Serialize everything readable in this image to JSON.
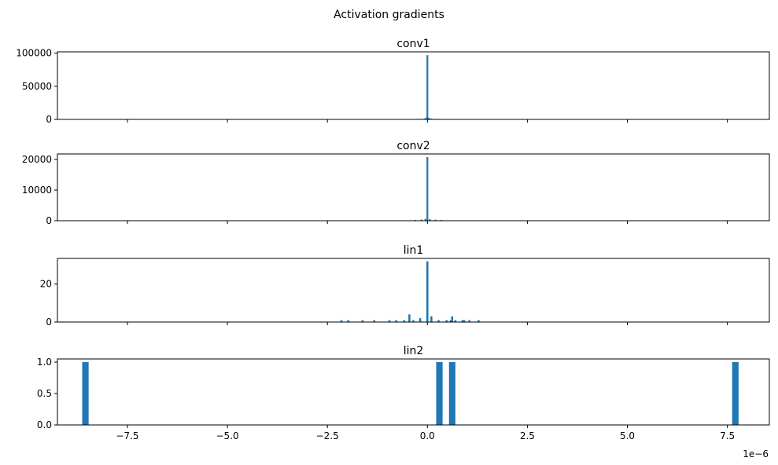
{
  "figure": {
    "suptitle": "Activation gradients",
    "x_offset_label": "1e−6",
    "bar_color": "#1f77b4"
  },
  "chart_data": [
    {
      "type": "bar",
      "title": "conv1",
      "xlabel": "",
      "ylabel": "",
      "x_unit_scale": 1e-06,
      "xlim": [
        -9.25,
        8.55
      ],
      "ylim": [
        0,
        102000
      ],
      "x_ticks": [
        -7.5,
        -5.0,
        -2.5,
        0.0,
        2.5,
        5.0,
        7.5
      ],
      "y_ticks": [
        0,
        50000,
        100000
      ],
      "y_tick_labels": [
        "0",
        "50000",
        "100000"
      ],
      "show_x_tick_labels": false,
      "bin_width": 0.04,
      "bars": [
        {
          "x": -0.2,
          "value": 300
        },
        {
          "x": -0.12,
          "value": 800
        },
        {
          "x": -0.06,
          "value": 1500
        },
        {
          "x": -0.02,
          "value": 3000
        },
        {
          "x": 0.0,
          "value": 97000
        },
        {
          "x": 0.04,
          "value": 2500
        },
        {
          "x": 0.1,
          "value": 1200
        },
        {
          "x": 0.18,
          "value": 500
        }
      ]
    },
    {
      "type": "bar",
      "title": "conv2",
      "xlabel": "",
      "ylabel": "",
      "x_unit_scale": 1e-06,
      "xlim": [
        -9.25,
        8.55
      ],
      "ylim": [
        0,
        21800
      ],
      "x_ticks": [
        -7.5,
        -5.0,
        -2.5,
        0.0,
        2.5,
        5.0,
        7.5
      ],
      "y_ticks": [
        0,
        10000,
        20000
      ],
      "y_tick_labels": [
        "0",
        "10000",
        "20000"
      ],
      "show_x_tick_labels": false,
      "bin_width": 0.03,
      "bars": [
        {
          "x": -0.45,
          "value": 150
        },
        {
          "x": -0.3,
          "value": 250
        },
        {
          "x": -0.15,
          "value": 400
        },
        {
          "x": -0.05,
          "value": 600
        },
        {
          "x": 0.0,
          "value": 20800
        },
        {
          "x": 0.06,
          "value": 500
        },
        {
          "x": 0.2,
          "value": 350
        },
        {
          "x": 0.35,
          "value": 250
        },
        {
          "x": 0.5,
          "value": 150
        }
      ]
    },
    {
      "type": "bar",
      "title": "lin1",
      "xlabel": "",
      "ylabel": "",
      "x_unit_scale": 1e-06,
      "xlim": [
        -9.25,
        8.55
      ],
      "ylim": [
        0,
        33.5
      ],
      "x_ticks": [
        -7.5,
        -5.0,
        -2.5,
        0.0,
        2.5,
        5.0,
        7.5
      ],
      "y_ticks": [
        0,
        20
      ],
      "y_tick_labels": [
        "0",
        "20"
      ],
      "show_x_tick_labels": false,
      "bin_width": 0.05,
      "bars": [
        {
          "x": -2.15,
          "value": 1
        },
        {
          "x": -1.98,
          "value": 1
        },
        {
          "x": -1.62,
          "value": 1
        },
        {
          "x": -1.33,
          "value": 1
        },
        {
          "x": -0.95,
          "value": 1
        },
        {
          "x": -0.78,
          "value": 1
        },
        {
          "x": -0.58,
          "value": 1
        },
        {
          "x": -0.45,
          "value": 4
        },
        {
          "x": -0.35,
          "value": 1
        },
        {
          "x": -0.18,
          "value": 2
        },
        {
          "x": 0.0,
          "value": 32
        },
        {
          "x": 0.1,
          "value": 3
        },
        {
          "x": 0.28,
          "value": 1
        },
        {
          "x": 0.48,
          "value": 1
        },
        {
          "x": 0.58,
          "value": 1
        },
        {
          "x": 0.62,
          "value": 3
        },
        {
          "x": 0.7,
          "value": 1
        },
        {
          "x": 0.88,
          "value": 1
        },
        {
          "x": 0.92,
          "value": 1
        },
        {
          "x": 1.05,
          "value": 1
        },
        {
          "x": 1.28,
          "value": 1
        }
      ]
    },
    {
      "type": "bar",
      "title": "lin2",
      "xlabel": "",
      "ylabel": "",
      "x_unit_scale": 1e-06,
      "xlim": [
        -9.25,
        8.55
      ],
      "ylim": [
        0,
        1.05
      ],
      "x_ticks": [
        -7.5,
        -5.0,
        -2.5,
        0.0,
        2.5,
        5.0,
        7.5
      ],
      "x_tick_labels": [
        "−7.5",
        "−5.0",
        "−2.5",
        "0.0",
        "2.5",
        "5.0",
        "7.5"
      ],
      "y_ticks": [
        0,
        0.5,
        1.0
      ],
      "y_tick_labels": [
        "0.0",
        "0.5",
        "1.0"
      ],
      "show_x_tick_labels": true,
      "bin_width": 0.16,
      "bars": [
        {
          "x": -8.55,
          "value": 1
        },
        {
          "x": 0.3,
          "value": 1
        },
        {
          "x": 0.62,
          "value": 1
        },
        {
          "x": 7.7,
          "value": 1
        }
      ]
    }
  ]
}
